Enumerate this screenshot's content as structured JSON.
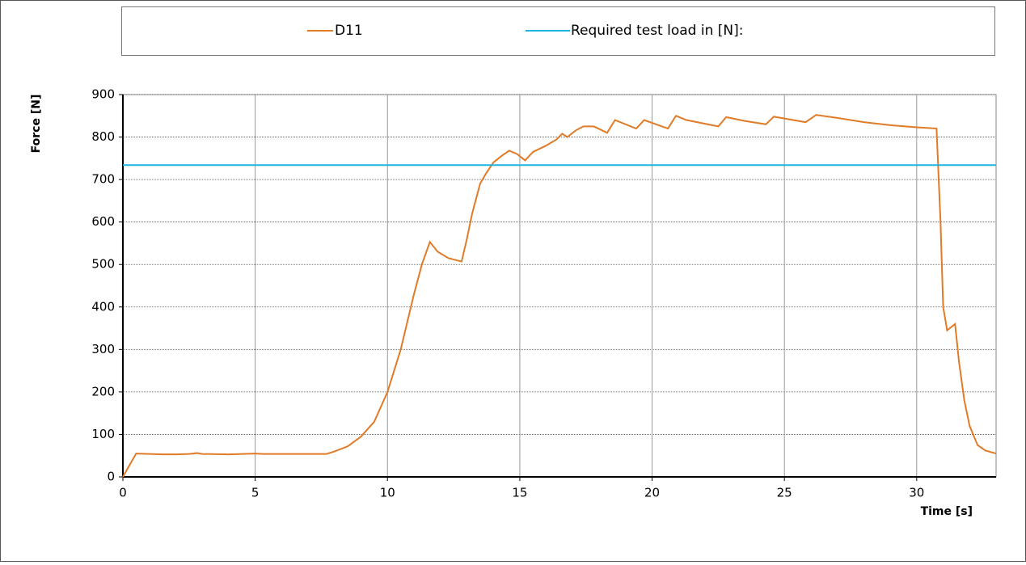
{
  "chart_data": {
    "type": "line",
    "xlabel": "Time [s]",
    "ylabel": "Force [N]",
    "xlim": [
      0,
      33
    ],
    "xticks": [
      0,
      5,
      10,
      15,
      20,
      25,
      30
    ],
    "ylim": [
      0,
      900
    ],
    "yticks": [
      0,
      100,
      200,
      300,
      400,
      500,
      600,
      700,
      800,
      900
    ],
    "grid": true,
    "legend": "top",
    "series": [
      {
        "name": "D11",
        "color": "#e07b28",
        "x": [
          0,
          0.5,
          1,
          1.5,
          2,
          2.5,
          2.8,
          3,
          4,
          5,
          5.3,
          6,
          7,
          7.7,
          8,
          8.5,
          9,
          9.5,
          10,
          10.5,
          11,
          11.3,
          11.6,
          11.9,
          12.3,
          12.8,
          13,
          13.2,
          13.5,
          13.7,
          14,
          14.3,
          14.6,
          14.9,
          15.2,
          15.5,
          16,
          16.4,
          16.6,
          16.8,
          17.1,
          17.4,
          17.8,
          18.3,
          18.6,
          19.4,
          19.7,
          20.6,
          20.9,
          21.3,
          22.5,
          22.8,
          23.5,
          24.3,
          24.6,
          25.8,
          26.2,
          27,
          28,
          29,
          30,
          30.75,
          30.9,
          31,
          31.15,
          31.45,
          31.6,
          31.8,
          32,
          32.3,
          32.6,
          33
        ],
        "values": [
          0,
          55,
          54,
          53,
          53,
          54,
          56,
          54,
          53,
          55,
          54,
          54,
          54,
          54,
          60,
          72,
          95,
          130,
          200,
          300,
          430,
          500,
          553,
          530,
          515,
          507,
          560,
          620,
          690,
          712,
          740,
          755,
          768,
          760,
          745,
          765,
          780,
          795,
          808,
          800,
          815,
          825,
          825,
          810,
          840,
          820,
          840,
          820,
          850,
          840,
          825,
          847,
          838,
          830,
          848,
          835,
          852,
          845,
          835,
          828,
          823,
          820,
          600,
          400,
          345,
          360,
          270,
          180,
          120,
          75,
          62,
          55
        ]
      },
      {
        "name": "Required test load in [N]:",
        "color": "#1fb4e0",
        "x": [
          0,
          33
        ],
        "values": [
          734,
          734
        ]
      }
    ]
  }
}
